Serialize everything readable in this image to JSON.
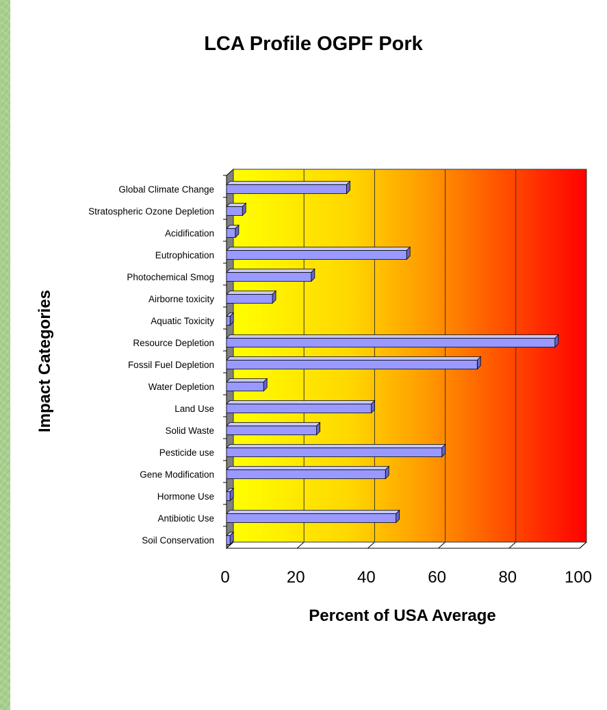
{
  "colors": {
    "bar_front": "#9999ff",
    "bar_top": "#c8c8ff",
    "bar_side": "#6666cc",
    "wall": "#808080",
    "gradient": [
      "#ffff00",
      "#ffd700",
      "#ff9900",
      "#ff4400",
      "#ff0000"
    ]
  },
  "chart_data": {
    "type": "bar",
    "orientation": "horizontal",
    "style": "3d",
    "title": "LCA Profile OGPF Pork",
    "xlabel": "Percent of USA Average",
    "ylabel": "Impact Categories",
    "xlim": [
      0,
      100
    ],
    "xticks": [
      "0",
      "20",
      "40",
      "60",
      "80",
      "100"
    ],
    "grid": true,
    "categories": [
      "Global Climate Change",
      "Stratospheric Ozone Depletion",
      "Acidification",
      "Eutrophication",
      "Photochemical Smog",
      "Airborne toxicity",
      "Aquatic Toxicity",
      "Resource Depletion",
      "Fossil Fuel Depletion",
      "Water Depletion",
      "Land Use",
      "Solid Waste",
      "Pesticide use",
      "Gene Modification",
      "Hormone Use",
      "Antibiotic Use",
      "Soil Conservation"
    ],
    "values": [
      34,
      4.5,
      2.5,
      51,
      24,
      13,
      1,
      93,
      71,
      10.5,
      41,
      25.5,
      61,
      45,
      1,
      48,
      1
    ]
  }
}
